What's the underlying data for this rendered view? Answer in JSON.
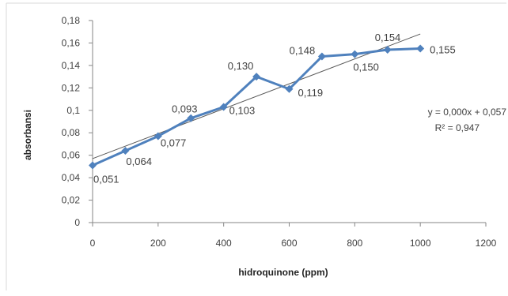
{
  "chart_data": {
    "type": "line",
    "xlabel": "hidroquinone (ppm)",
    "ylabel": "absorbansi",
    "xlim": [
      0,
      1200
    ],
    "ylim": [
      0,
      0.18
    ],
    "x_ticks": [
      "0",
      "200",
      "400",
      "600",
      "800",
      "1000",
      "1200"
    ],
    "y_ticks": [
      "0",
      "0,02",
      "0,04",
      "0,06",
      "0,08",
      "0,1",
      "0,12",
      "0,14",
      "0,16",
      "0,18"
    ],
    "series": [
      {
        "x": [
          0,
          100,
          200,
          300,
          400,
          500,
          600,
          700,
          800,
          900,
          1000
        ],
        "values": [
          0.051,
          0.064,
          0.077,
          0.093,
          0.103,
          0.13,
          0.119,
          0.148,
          0.15,
          0.154,
          0.155
        ],
        "data_labels": [
          "0,051",
          "0,064",
          "0,077",
          "0,093",
          "0,103",
          "0,130",
          "0,119",
          "0,148",
          "0,150",
          "0,154",
          "0,155"
        ]
      }
    ],
    "trendline": {
      "x": [
        0,
        1000
      ],
      "y": [
        0.057,
        0.168
      ]
    },
    "equation": "y = 0,000x + 0,057",
    "r_squared": "R² = 0,947",
    "grid": false,
    "colors": {
      "series": "#4f81bd",
      "trendline": "#595959",
      "axis": "#868686",
      "frame": "#d9d9d9"
    }
  }
}
